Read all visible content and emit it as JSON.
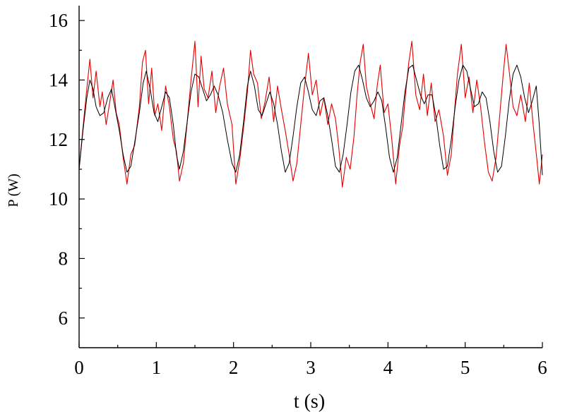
{
  "chart_data": {
    "type": "line",
    "title": "",
    "xlabel": "t (s)",
    "ylabel": "P (W)",
    "xlim": [
      0,
      6
    ],
    "ylim": [
      5,
      16.5
    ],
    "x_ticks": [
      0,
      1,
      2,
      3,
      4,
      5,
      6
    ],
    "y_ticks": [
      6,
      8,
      10,
      12,
      14,
      16
    ],
    "x_tick_labels": [
      "0",
      "1",
      "2",
      "3",
      "4",
      "5",
      "6"
    ],
    "y_tick_labels": [
      "6",
      "8",
      "10",
      "12",
      "14",
      "16"
    ],
    "grid": false,
    "legend": "none",
    "series": [
      {
        "color": "#e00000",
        "x": [
          0,
          0.05,
          0.1,
          0.14,
          0.18,
          0.22,
          0.27,
          0.3,
          0.35,
          0.4,
          0.44,
          0.48,
          0.52,
          0.57,
          0.62,
          0.67,
          0.72,
          0.78,
          0.82,
          0.86,
          0.9,
          0.94,
          0.98,
          1.02,
          1.07,
          1.12,
          1.17,
          1.22,
          1.26,
          1.3,
          1.35,
          1.4,
          1.45,
          1.5,
          1.54,
          1.58,
          1.62,
          1.67,
          1.72,
          1.77,
          1.82,
          1.87,
          1.92,
          1.98,
          2.03,
          2.08,
          2.13,
          2.18,
          2.22,
          2.26,
          2.31,
          2.36,
          2.41,
          2.46,
          2.52,
          2.57,
          2.62,
          2.67,
          2.72,
          2.77,
          2.82,
          2.87,
          2.92,
          2.97,
          3.02,
          3.07,
          3.12,
          3.17,
          3.22,
          3.27,
          3.32,
          3.36,
          3.41,
          3.46,
          3.51,
          3.56,
          3.6,
          3.64,
          3.68,
          3.72,
          3.77,
          3.82,
          3.86,
          3.9,
          3.95,
          4.0,
          4.05,
          4.1,
          4.15,
          4.19,
          4.23,
          4.27,
          4.31,
          4.36,
          4.41,
          4.46,
          4.51,
          4.56,
          4.61,
          4.66,
          4.72,
          4.77,
          4.82,
          4.86,
          4.9,
          4.95,
          5.0,
          5.05,
          5.1,
          5.15,
          5.2,
          5.25,
          5.3,
          5.35,
          5.4,
          5.45,
          5.49,
          5.53,
          5.57,
          5.62,
          5.67,
          5.72,
          5.78,
          5.83,
          5.88,
          5.93,
          5.96,
          6.0
        ],
        "y": [
          11.0,
          12.4,
          13.7,
          14.7,
          13.4,
          14.3,
          13.1,
          13.6,
          12.5,
          13.3,
          14.0,
          12.9,
          12.5,
          11.4,
          10.5,
          11.5,
          11.8,
          13.1,
          14.6,
          15.0,
          13.2,
          14.4,
          12.8,
          13.2,
          12.3,
          13.8,
          13.1,
          12.0,
          11.6,
          10.6,
          11.2,
          12.6,
          14.0,
          15.3,
          13.1,
          14.8,
          13.7,
          13.4,
          14.3,
          12.9,
          13.8,
          14.4,
          13.2,
          12.5,
          10.5,
          11.3,
          12.4,
          13.6,
          15.0,
          14.2,
          13.9,
          12.7,
          13.3,
          14.1,
          12.6,
          13.8,
          13.0,
          12.3,
          11.5,
          10.6,
          11.2,
          12.5,
          13.8,
          14.9,
          13.5,
          14.0,
          12.8,
          13.4,
          12.5,
          13.2,
          12.7,
          11.8,
          10.4,
          11.4,
          11.0,
          12.1,
          13.5,
          14.6,
          15.2,
          13.8,
          13.2,
          12.7,
          13.8,
          14.5,
          12.9,
          13.2,
          12.0,
          10.5,
          11.8,
          12.4,
          13.6,
          14.6,
          15.3,
          13.5,
          13.0,
          14.2,
          12.8,
          13.9,
          12.6,
          13.0,
          12.1,
          10.8,
          11.5,
          12.9,
          14.2,
          15.2,
          13.4,
          14.1,
          12.9,
          14.0,
          13.1,
          11.9,
          10.9,
          10.6,
          11.4,
          12.9,
          14.1,
          15.2,
          14.3,
          13.1,
          12.8,
          13.5,
          12.6,
          13.9,
          12.5,
          11.3,
          10.5,
          11.5
        ]
      },
      {
        "color": "#000000",
        "x": [
          0,
          0.05,
          0.1,
          0.14,
          0.18,
          0.22,
          0.27,
          0.32,
          0.37,
          0.42,
          0.47,
          0.52,
          0.57,
          0.62,
          0.67,
          0.72,
          0.78,
          0.83,
          0.87,
          0.92,
          0.97,
          1.02,
          1.07,
          1.12,
          1.17,
          1.22,
          1.26,
          1.3,
          1.35,
          1.4,
          1.45,
          1.5,
          1.55,
          1.6,
          1.65,
          1.7,
          1.75,
          1.8,
          1.86,
          1.92,
          1.98,
          2.03,
          2.08,
          2.13,
          2.18,
          2.22,
          2.27,
          2.32,
          2.37,
          2.42,
          2.47,
          2.52,
          2.57,
          2.62,
          2.67,
          2.72,
          2.77,
          2.82,
          2.87,
          2.92,
          2.97,
          3.02,
          3.07,
          3.12,
          3.17,
          3.22,
          3.27,
          3.32,
          3.37,
          3.42,
          3.47,
          3.52,
          3.57,
          3.62,
          3.67,
          3.72,
          3.77,
          3.82,
          3.87,
          3.92,
          3.97,
          4.02,
          4.07,
          4.12,
          4.17,
          4.22,
          4.27,
          4.32,
          4.37,
          4.42,
          4.47,
          4.52,
          4.57,
          4.62,
          4.67,
          4.72,
          4.77,
          4.82,
          4.87,
          4.92,
          4.97,
          5.02,
          5.07,
          5.12,
          5.17,
          5.22,
          5.27,
          5.32,
          5.37,
          5.42,
          5.47,
          5.52,
          5.57,
          5.62,
          5.67,
          5.72,
          5.77,
          5.82,
          5.87,
          5.92,
          5.96,
          6.0
        ],
        "y": [
          11.0,
          12.3,
          13.4,
          14.0,
          13.7,
          13.1,
          12.8,
          12.9,
          13.4,
          13.7,
          13.0,
          12.3,
          11.5,
          10.9,
          11.1,
          11.9,
          12.9,
          13.9,
          14.3,
          13.7,
          12.9,
          12.6,
          13.1,
          13.6,
          13.4,
          12.5,
          11.5,
          11.0,
          11.6,
          12.6,
          13.6,
          14.2,
          14.1,
          13.7,
          13.3,
          13.5,
          13.8,
          13.5,
          12.9,
          12.0,
          11.2,
          10.9,
          11.5,
          12.6,
          13.8,
          14.3,
          13.8,
          13.0,
          12.8,
          13.2,
          13.6,
          13.2,
          12.5,
          11.6,
          10.9,
          11.2,
          12.1,
          13.1,
          13.9,
          14.1,
          13.6,
          13.0,
          12.8,
          13.3,
          13.4,
          12.8,
          12.0,
          11.1,
          10.9,
          11.5,
          12.5,
          13.6,
          14.3,
          14.5,
          14.0,
          13.4,
          13.1,
          13.3,
          13.6,
          13.3,
          12.4,
          11.4,
          10.9,
          11.4,
          12.5,
          13.6,
          14.4,
          14.5,
          14.0,
          13.5,
          13.2,
          13.5,
          13.5,
          12.8,
          11.8,
          11.0,
          11.1,
          12.0,
          13.1,
          14.0,
          14.5,
          14.3,
          13.7,
          13.1,
          13.2,
          13.6,
          13.4,
          12.6,
          11.6,
          10.9,
          11.1,
          12.1,
          13.3,
          14.2,
          14.5,
          14.1,
          13.4,
          12.9,
          13.3,
          13.8,
          12.5,
          10.8
        ]
      }
    ]
  }
}
